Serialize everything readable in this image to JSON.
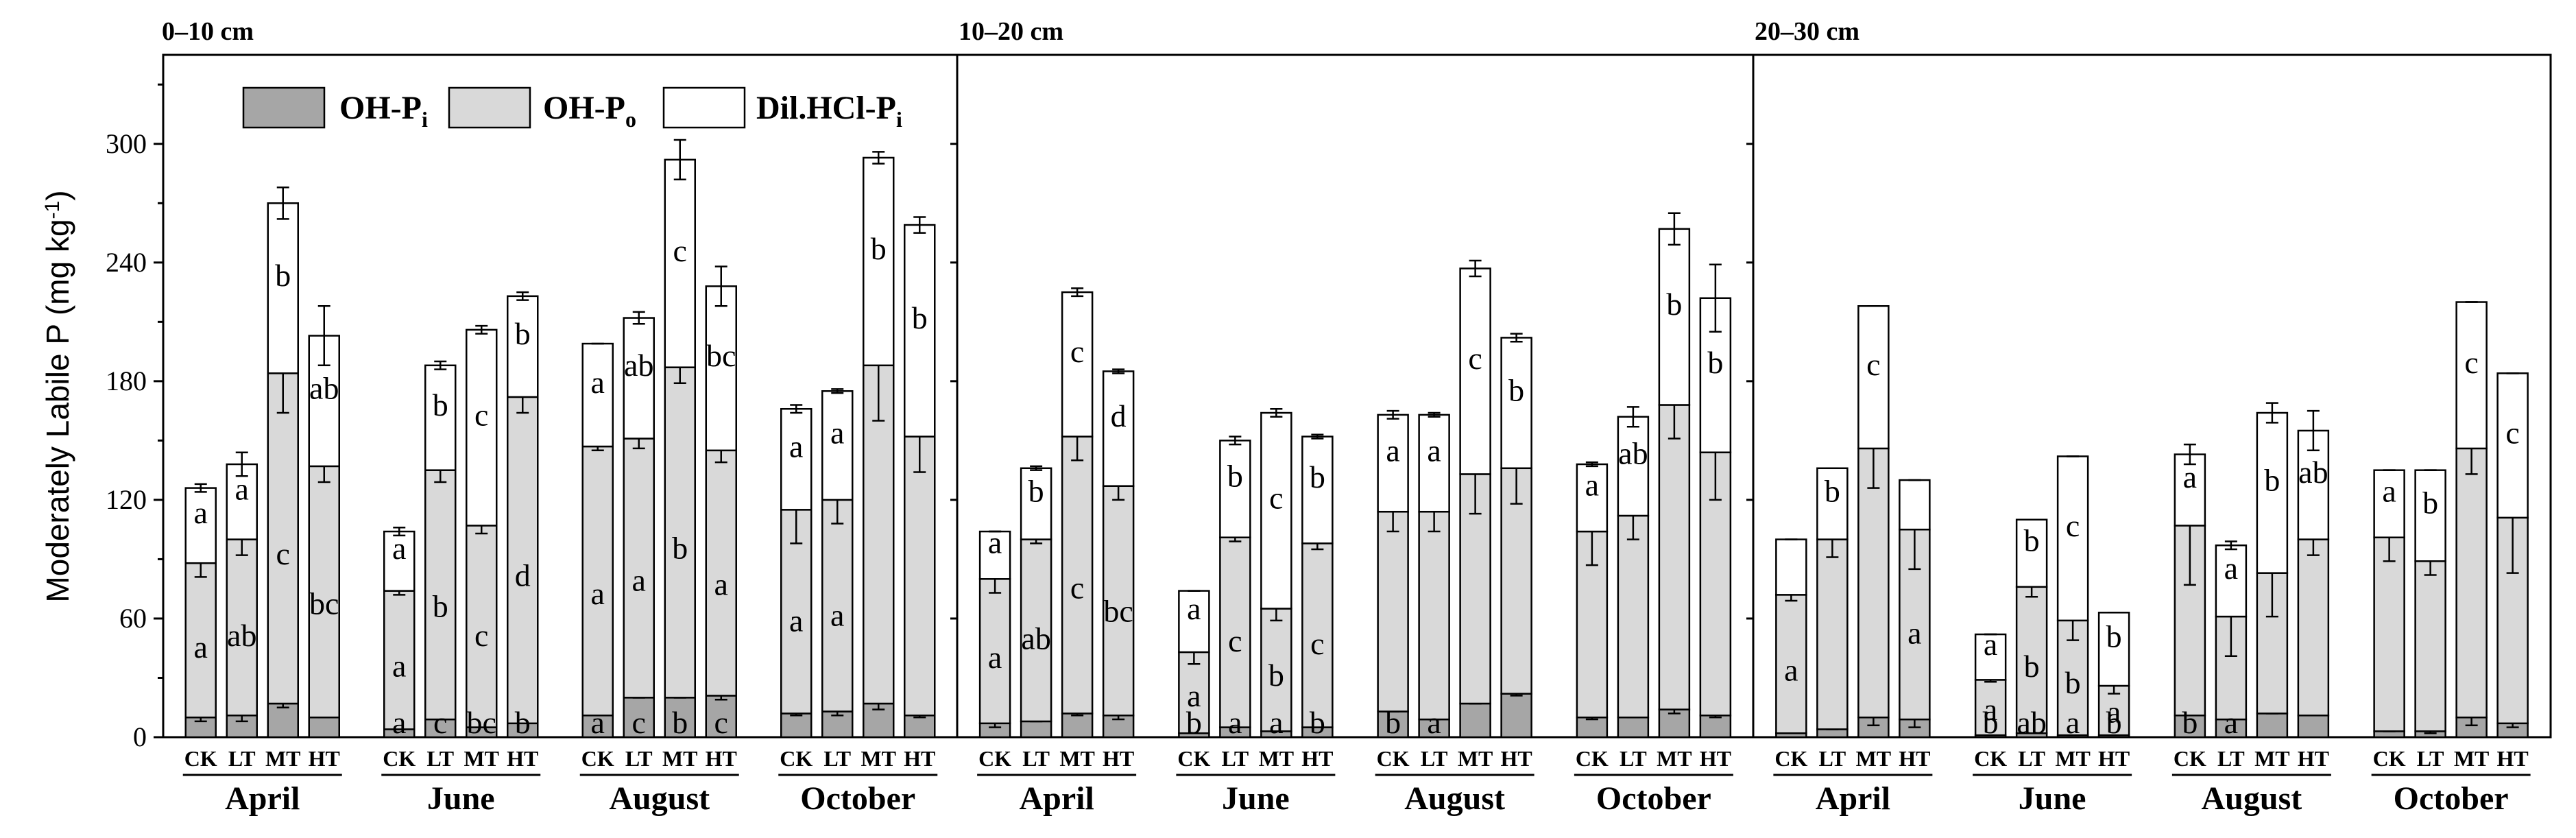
{
  "chart_data": {
    "type": "stacked-bar",
    "ylabel": "Moderately Labile P (mg kg",
    "ylabel_sup": "-1",
    "ylabel_close": ")",
    "ylim": [
      0,
      345
    ],
    "yticks": [
      0,
      60,
      120,
      180,
      240,
      300
    ],
    "legend": [
      {
        "key": "ohpi",
        "base": "OH-P",
        "sub": "i",
        "color": "#a6a6a6"
      },
      {
        "key": "ohpo",
        "base": "OH-P",
        "sub": "o",
        "color": "#d9d9d9"
      },
      {
        "key": "hcl",
        "base": "Dil.HCl-P",
        "sub": "i",
        "color": "#ffffff"
      }
    ],
    "treatments": [
      "CK",
      "LT",
      "MT",
      "HT"
    ],
    "months": [
      "April",
      "June",
      "August",
      "October"
    ],
    "panels": [
      {
        "title": "0–10 cm",
        "groups": [
          {
            "bars": [
              {
                "ohpi": 10,
                "ohpi_err": 2,
                "ohpo": 78,
                "ohpo_err": 7,
                "hcl": 38,
                "hcl_err": 2,
                "letters": {
                  "hcl": "a",
                  "ohpo": "a"
                }
              },
              {
                "ohpi": 11,
                "ohpi_err": 3,
                "ohpo": 89,
                "ohpo_err": 8,
                "hcl": 38,
                "hcl_err": 6,
                "letters": {
                  "hcl": "a",
                  "ohpo": "ab"
                }
              },
              {
                "ohpi": 17,
                "ohpi_err": 2,
                "ohpo": 167,
                "ohpo_err": 20,
                "hcl": 86,
                "hcl_err": 8,
                "letters": {
                  "hcl": "b",
                  "ohpo": "c"
                }
              },
              {
                "ohpi": 10,
                "ohpi_err": 0,
                "ohpo": 127,
                "ohpo_err": 8,
                "hcl": 66,
                "hcl_err": 15,
                "letters": {
                  "hcl": "ab",
                  "ohpo": "bc"
                }
              }
            ]
          },
          {
            "bars": [
              {
                "ohpi": 4,
                "ohpi_err": 0,
                "ohpo": 70,
                "ohpo_err": 2,
                "hcl": 30,
                "hcl_err": 2,
                "letters": {
                  "hcl": "a",
                  "ohpo": "a",
                  "ohpi": "a"
                }
              },
              {
                "ohpi": 9,
                "ohpi_err": 0,
                "ohpo": 126,
                "ohpo_err": 6,
                "hcl": 53,
                "hcl_err": 2,
                "letters": {
                  "hcl": "b",
                  "ohpo": "b",
                  "ohpi": "c"
                }
              },
              {
                "ohpi": 5,
                "ohpi_err": 0,
                "ohpo": 102,
                "ohpo_err": 4,
                "hcl": 99,
                "hcl_err": 2,
                "letters": {
                  "hcl": "c",
                  "ohpo": "c",
                  "ohpi": "bc"
                }
              },
              {
                "ohpi": 7,
                "ohpi_err": 0,
                "ohpo": 165,
                "ohpo_err": 8,
                "hcl": 51,
                "hcl_err": 2,
                "letters": {
                  "hcl": "b",
                  "ohpo": "d",
                  "ohpi": "b"
                }
              }
            ]
          },
          {
            "bars": [
              {
                "ohpi": 11,
                "ohpi_err": 0,
                "ohpo": 136,
                "ohpo_err": 2,
                "hcl": 52,
                "hcl_err": 0,
                "letters": {
                  "hcl": "a",
                  "ohpo": "a",
                  "ohpi": "a"
                }
              },
              {
                "ohpi": 20,
                "ohpi_err": 0,
                "ohpo": 131,
                "ohpo_err": 5,
                "hcl": 61,
                "hcl_err": 3,
                "letters": {
                  "hcl": "ab",
                  "ohpo": "a",
                  "ohpi": "c"
                }
              },
              {
                "ohpi": 20,
                "ohpi_err": 0,
                "ohpo": 167,
                "ohpo_err": 8,
                "hcl": 105,
                "hcl_err": 10,
                "letters": {
                  "hcl": "c",
                  "ohpo": "b",
                  "ohpi": "b"
                }
              },
              {
                "ohpi": 21,
                "ohpi_err": 2,
                "ohpo": 124,
                "ohpo_err": 6,
                "hcl": 83,
                "hcl_err": 10,
                "letters": {
                  "hcl": "bc",
                  "ohpo": "a",
                  "ohpi": "c"
                }
              }
            ]
          },
          {
            "bars": [
              {
                "ohpi": 12,
                "ohpi_err": 1,
                "ohpo": 103,
                "ohpo_err": 17,
                "hcl": 51,
                "hcl_err": 2,
                "letters": {
                  "hcl": "a",
                  "ohpo": "a"
                }
              },
              {
                "ohpi": 13,
                "ohpi_err": 2,
                "ohpo": 107,
                "ohpo_err": 12,
                "hcl": 55,
                "hcl_err": 1,
                "letters": {
                  "hcl": "a",
                  "ohpo": "a"
                }
              },
              {
                "ohpi": 17,
                "ohpi_err": 3,
                "ohpo": 171,
                "ohpo_err": 28,
                "hcl": 105,
                "hcl_err": 3,
                "letters": {
                  "hcl": "b",
                  "ohpo": ""
                }
              },
              {
                "ohpi": 11,
                "ohpi_err": 1,
                "ohpo": 141,
                "ohpo_err": 18,
                "hcl": 107,
                "hcl_err": 4,
                "letters": {
                  "hcl": "b",
                  "ohpo": ""
                }
              }
            ]
          }
        ]
      },
      {
        "title": "10–20 cm",
        "groups": [
          {
            "bars": [
              {
                "ohpi": 7,
                "ohpi_err": 2,
                "ohpo": 73,
                "ohpo_err": 7,
                "hcl": 24,
                "hcl_err": 0,
                "letters": {
                  "hcl": "a",
                  "ohpo": "a"
                }
              },
              {
                "ohpi": 8,
                "ohpi_err": 0,
                "ohpo": 92,
                "ohpo_err": 2,
                "hcl": 36,
                "hcl_err": 1,
                "letters": {
                  "hcl": "b",
                  "ohpo": "ab"
                }
              },
              {
                "ohpi": 12,
                "ohpi_err": 1,
                "ohpo": 140,
                "ohpo_err": 12,
                "hcl": 73,
                "hcl_err": 2,
                "letters": {
                  "hcl": "c",
                  "ohpo": "c"
                }
              },
              {
                "ohpi": 11,
                "ohpi_err": 2,
                "ohpo": 116,
                "ohpo_err": 7,
                "hcl": 58,
                "hcl_err": 1,
                "letters": {
                  "hcl": "d",
                  "ohpo": "bc"
                }
              }
            ]
          },
          {
            "bars": [
              {
                "ohpi": 2,
                "ohpi_err": 0,
                "ohpo": 41,
                "ohpo_err": 6,
                "hcl": 31,
                "hcl_err": 0,
                "letters": {
                  "hcl": "a",
                  "ohpo": "a",
                  "ohpi": "b"
                }
              },
              {
                "ohpi": 5,
                "ohpi_err": 0,
                "ohpo": 96,
                "ohpo_err": 2,
                "hcl": 49,
                "hcl_err": 2,
                "letters": {
                  "hcl": "b",
                  "ohpo": "c",
                  "ohpi": "a"
                }
              },
              {
                "ohpi": 3,
                "ohpi_err": 0,
                "ohpo": 62,
                "ohpo_err": 6,
                "hcl": 99,
                "hcl_err": 2,
                "letters": {
                  "hcl": "c",
                  "ohpo": "b",
                  "ohpi": "a"
                }
              },
              {
                "ohpi": 5,
                "ohpi_err": 0,
                "ohpo": 93,
                "ohpo_err": 3,
                "hcl": 54,
                "hcl_err": 1,
                "letters": {
                  "hcl": "b",
                  "ohpo": "c",
                  "ohpi": "b"
                }
              }
            ]
          },
          {
            "bars": [
              {
                "ohpi": 13,
                "ohpi_err": 0,
                "ohpo": 101,
                "ohpo_err": 10,
                "hcl": 49,
                "hcl_err": 2,
                "letters": {
                  "hcl": "a",
                  "ohpo": "",
                  "ohpi": "b"
                }
              },
              {
                "ohpi": 9,
                "ohpi_err": 0,
                "ohpo": 105,
                "ohpo_err": 10,
                "hcl": 49,
                "hcl_err": 1,
                "letters": {
                  "hcl": "a",
                  "ohpo": "",
                  "ohpi": "a"
                }
              },
              {
                "ohpi": 17,
                "ohpi_err": 0,
                "ohpo": 116,
                "ohpo_err": 20,
                "hcl": 104,
                "hcl_err": 4,
                "letters": {
                  "hcl": "c",
                  "ohpo": "",
                  "ohpi": ""
                }
              },
              {
                "ohpi": 22,
                "ohpi_err": 1,
                "ohpo": 114,
                "ohpo_err": 18,
                "hcl": 66,
                "hcl_err": 2,
                "letters": {
                  "hcl": "b",
                  "ohpo": "",
                  "ohpi": ""
                }
              }
            ]
          },
          {
            "bars": [
              {
                "ohpi": 10,
                "ohpi_err": 1,
                "ohpo": 94,
                "ohpo_err": 17,
                "hcl": 34,
                "hcl_err": 1,
                "letters": {
                  "hcl": "a",
                  "ohpo": ""
                }
              },
              {
                "ohpi": 10,
                "ohpi_err": 0,
                "ohpo": 102,
                "ohpo_err": 12,
                "hcl": 50,
                "hcl_err": 5,
                "letters": {
                  "hcl": "ab",
                  "ohpo": ""
                }
              },
              {
                "ohpi": 14,
                "ohpi_err": 2,
                "ohpo": 154,
                "ohpo_err": 17,
                "hcl": 89,
                "hcl_err": 8,
                "letters": {
                  "hcl": "b",
                  "ohpo": ""
                }
              },
              {
                "ohpi": 11,
                "ohpi_err": 1,
                "ohpo": 133,
                "ohpo_err": 24,
                "hcl": 78,
                "hcl_err": 17,
                "letters": {
                  "hcl": "b",
                  "ohpo": ""
                }
              }
            ]
          }
        ]
      },
      {
        "title": "20–30 cm",
        "groups": [
          {
            "bars": [
              {
                "ohpi": 2,
                "ohpi_err": 0,
                "ohpo": 70,
                "ohpo_err": 3,
                "hcl": 28,
                "hcl_err": 0,
                "letters": {
                  "hcl": "",
                  "ohpo": "a"
                }
              },
              {
                "ohpi": 4,
                "ohpi_err": 0,
                "ohpo": 96,
                "ohpo_err": 9,
                "hcl": 36,
                "hcl_err": 0,
                "letters": {
                  "hcl": "b",
                  "ohpo": ""
                }
              },
              {
                "ohpi": 10,
                "ohpi_err": 4,
                "ohpo": 136,
                "ohpo_err": 20,
                "hcl": 72,
                "hcl_err": 0,
                "letters": {
                  "hcl": "c",
                  "ohpo": ""
                }
              },
              {
                "ohpi": 9,
                "ohpi_err": 4,
                "ohpo": 96,
                "ohpo_err": 20,
                "hcl": 25,
                "hcl_err": 0,
                "letters": {
                  "hcl": "",
                  "ohpo": "a"
                }
              }
            ]
          },
          {
            "bars": [
              {
                "ohpi": 1,
                "ohpi_err": 0,
                "ohpo": 28,
                "ohpo_err": 1,
                "hcl": 23,
                "hcl_err": 0,
                "letters": {
                  "hcl": "a",
                  "ohpo": "a",
                  "ohpi": "b"
                }
              },
              {
                "ohpi": 2,
                "ohpi_err": 0,
                "ohpo": 74,
                "ohpo_err": 5,
                "hcl": 34,
                "hcl_err": 0,
                "letters": {
                  "hcl": "b",
                  "ohpo": "b",
                  "ohpi": "ab"
                }
              },
              {
                "ohpi": 1,
                "ohpi_err": 0,
                "ohpo": 58,
                "ohpo_err": 10,
                "hcl": 83,
                "hcl_err": 0,
                "letters": {
                  "hcl": "c",
                  "ohpo": "b",
                  "ohpi": "a"
                }
              },
              {
                "ohpi": 1,
                "ohpi_err": 0,
                "ohpo": 25,
                "ohpo_err": 4,
                "hcl": 37,
                "hcl_err": 0,
                "letters": {
                  "hcl": "b",
                  "ohpo": "a",
                  "ohpi": "b"
                }
              }
            ]
          },
          {
            "bars": [
              {
                "ohpi": 11,
                "ohpi_err": 0,
                "ohpo": 96,
                "ohpo_err": 30,
                "hcl": 36,
                "hcl_err": 5,
                "letters": {
                  "hcl": "a",
                  "ohpo": "",
                  "ohpi": "b"
                }
              },
              {
                "ohpi": 9,
                "ohpi_err": 0,
                "ohpo": 52,
                "ohpo_err": 20,
                "hcl": 36,
                "hcl_err": 2,
                "letters": {
                  "hcl": "a",
                  "ohpo": "",
                  "ohpi": "a"
                }
              },
              {
                "ohpi": 12,
                "ohpi_err": 0,
                "ohpo": 71,
                "ohpo_err": 22,
                "hcl": 81,
                "hcl_err": 5,
                "letters": {
                  "hcl": "b",
                  "ohpo": "",
                  "ohpi": ""
                }
              },
              {
                "ohpi": 11,
                "ohpi_err": 0,
                "ohpo": 89,
                "ohpo_err": 8,
                "hcl": 55,
                "hcl_err": 10,
                "letters": {
                  "hcl": "ab",
                  "ohpo": "",
                  "ohpi": ""
                }
              }
            ]
          },
          {
            "bars": [
              {
                "ohpi": 3,
                "ohpi_err": 0,
                "ohpo": 98,
                "ohpo_err": 12,
                "hcl": 34,
                "hcl_err": 0,
                "letters": {
                  "hcl": "a",
                  "ohpo": ""
                }
              },
              {
                "ohpi": 3,
                "ohpi_err": 1,
                "ohpo": 86,
                "ohpo_err": 7,
                "hcl": 46,
                "hcl_err": 0,
                "letters": {
                  "hcl": "b",
                  "ohpo": ""
                }
              },
              {
                "ohpi": 10,
                "ohpi_err": 4,
                "ohpo": 136,
                "ohpo_err": 13,
                "hcl": 74,
                "hcl_err": 0,
                "letters": {
                  "hcl": "c",
                  "ohpo": ""
                }
              },
              {
                "ohpi": 7,
                "ohpi_err": 2,
                "ohpo": 104,
                "ohpo_err": 28,
                "hcl": 73,
                "hcl_err": 0,
                "letters": {
                  "hcl": "c",
                  "ohpo": ""
                }
              }
            ]
          }
        ]
      }
    ]
  }
}
